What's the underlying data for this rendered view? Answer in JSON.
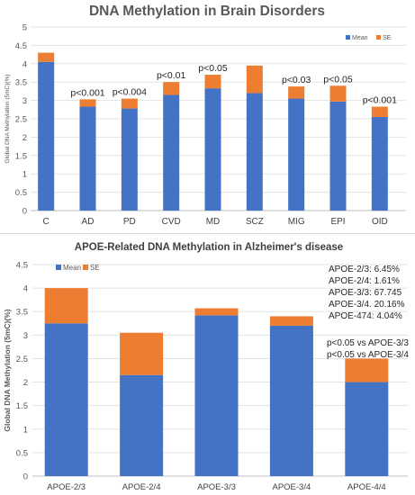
{
  "chart_data": [
    {
      "type": "bar",
      "stacked": true,
      "title": "DNA Methylation in Brain Disorders",
      "ylabel": "Global DNA Methylation (5mC)(%)",
      "xlabel": "",
      "ylim": [
        0,
        5
      ],
      "yticks": [
        "0",
        "0.5",
        "1",
        "1.5",
        "2",
        "2.5",
        "3",
        "3.5",
        "4",
        "4.5",
        "5"
      ],
      "grid": true,
      "legend": "top-right",
      "categories": [
        "C",
        "AD",
        "PD",
        "CVD",
        "MD",
        "SCZ",
        "MIG",
        "EPI",
        "OID"
      ],
      "series": [
        {
          "name": "Mean",
          "color": "#4472C4",
          "values": [
            4.05,
            2.83,
            2.78,
            3.15,
            3.33,
            3.2,
            3.05,
            2.97,
            2.55
          ]
        },
        {
          "name": "SE",
          "color": "#ED7D31",
          "values": [
            0.25,
            0.2,
            0.27,
            0.35,
            0.37,
            0.75,
            0.33,
            0.43,
            0.28
          ]
        }
      ],
      "annotations": [
        "",
        "p<0.001",
        "p<0.004",
        "p<0.01",
        "p<0.05",
        "",
        "p<0.03",
        "p<0.05",
        "p<0.001"
      ]
    },
    {
      "type": "bar",
      "stacked": true,
      "title": "APOE-Related DNA Methylation in Alzheimer's disease",
      "ylabel": "Global DNA Methylation (5mC)(%)",
      "xlabel": "",
      "ylim": [
        0,
        4.5
      ],
      "yticks": [
        "0",
        "0.5",
        "1",
        "1.5",
        "2",
        "2.5",
        "3",
        "3.5",
        "4",
        "4.5"
      ],
      "grid": true,
      "legend": "top-left",
      "categories": [
        "APOE-2/3",
        "APOE-2/4",
        "APOE-3/3",
        "APOE-3/4",
        "APOE-4/4"
      ],
      "series": [
        {
          "name": "Mean",
          "color": "#4472C4",
          "values": [
            3.25,
            2.15,
            3.42,
            3.2,
            2.0
          ]
        },
        {
          "name": "SE",
          "color": "#ED7D31",
          "values": [
            0.75,
            0.9,
            0.15,
            0.2,
            0.5
          ]
        }
      ],
      "frequencies": [
        "APOE-2/3: 6.45%",
        "APOE-2/4: 1.61%",
        "APOE-3/3: 67.745",
        "APOE-3/4. 20.16%",
        "APOE-474: 4.04%"
      ],
      "annotations": [
        "p<0.05 vs APOE-3/3",
        "p<0.05 vs APOE-3/4"
      ]
    }
  ]
}
